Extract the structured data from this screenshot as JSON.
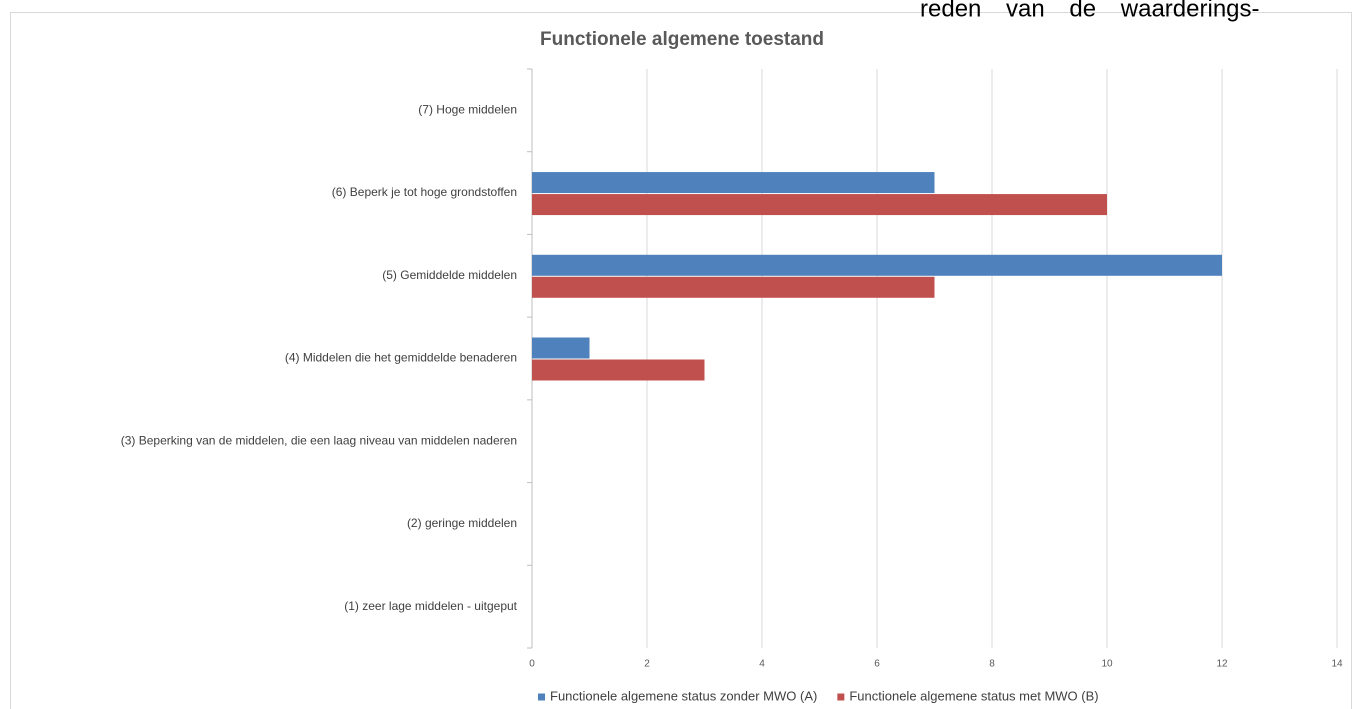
{
  "chart_data": {
    "type": "barh",
    "title": "Functionele algemene toestand",
    "annotations": [
      "reden van de waarderings-"
    ],
    "categories": [
      "(7) Hoge middelen",
      "(6) Beperk je tot hoge grondstoffen",
      "(5) Gemiddelde middelen",
      "(4) Middelen die het gemiddelde benaderen",
      "(3) Beperking van de middelen, die een laag niveau van middelen naderen",
      "(2) geringe middelen",
      "(1) zeer lage middelen - uitgeput"
    ],
    "series": [
      {
        "name": "Functionele algemene status zonder MWO (A)",
        "color": "#4f81bd",
        "values": [
          0,
          7,
          12,
          1,
          0,
          0,
          0
        ]
      },
      {
        "name": "Functionele algemene status met MWO (B)",
        "color": "#c0504d",
        "values": [
          0,
          10,
          7,
          3,
          0,
          0,
          0
        ]
      }
    ],
    "xlim": [
      0,
      14
    ],
    "xticks": [
      0,
      2,
      4,
      6,
      8,
      10,
      12,
      14
    ],
    "grid": true,
    "legend": "bottom"
  }
}
